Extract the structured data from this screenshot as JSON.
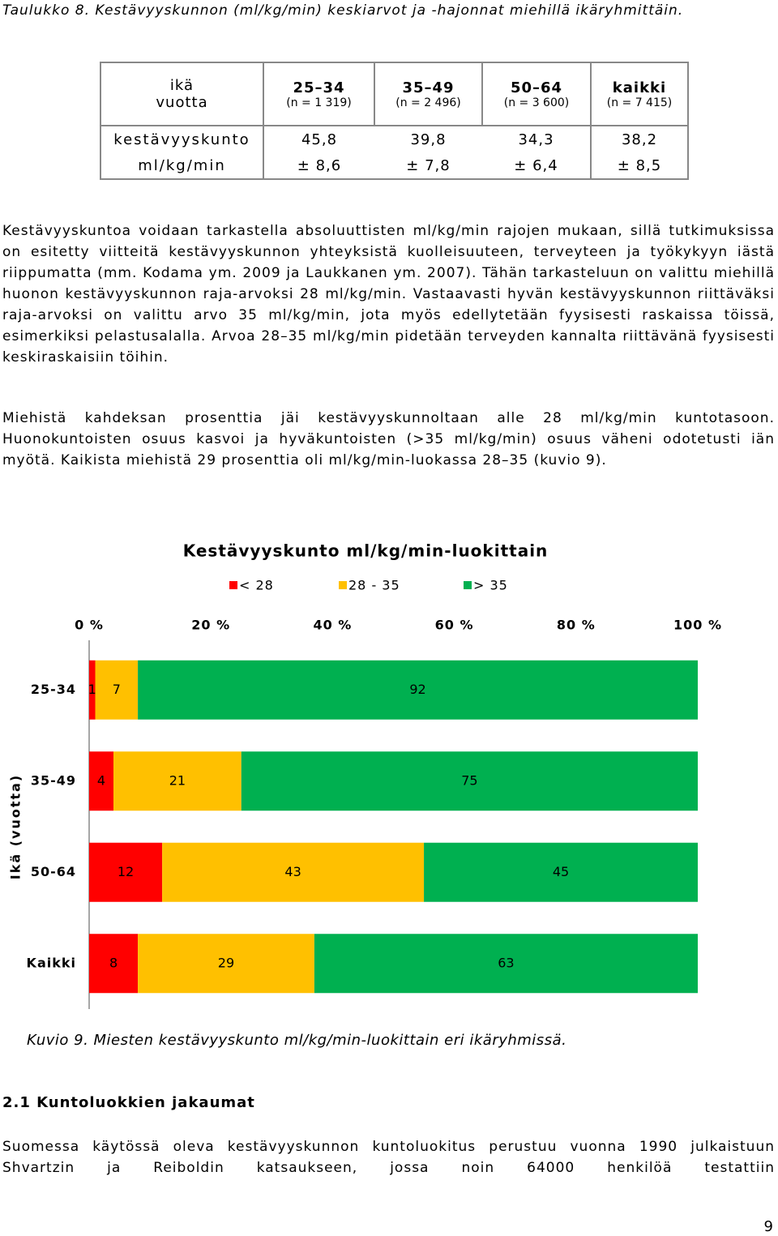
{
  "caption": "Taulukko 8. Kestävyyskunnon (ml/kg/min) keskiarvot ja -hajonnat miehillä ikäryhmittäin.",
  "table": {
    "header": [
      [
        "ikä",
        "vuotta"
      ],
      [
        "25–34",
        "(n = 1 319)"
      ],
      [
        "35–49",
        "(n = 2 496)"
      ],
      [
        "50–64",
        "(n = 3 600)"
      ],
      [
        "kaikki",
        "(n = 7 415)"
      ]
    ],
    "rows": [
      [
        "kestävyyskunto",
        "45,8",
        "39,8",
        "34,3",
        "38,2"
      ],
      [
        "ml/kg/min",
        "± 8,6",
        "± 7,8",
        "± 6,4",
        "± 8,5"
      ]
    ]
  },
  "paragraphs": [
    "Kestävyyskuntoa voidaan tarkastella absoluuttisten ml/kg/min rajojen mukaan, sillä tutkimuksissa on esitetty viitteitä kestävyyskunnon yhteyksistä kuolleisuuteen, terveyteen ja työkykyyn iästä riippumatta (mm. Kodama ym. 2009 ja Laukkanen ym. 2007). Tähän tarkasteluun on valittu miehillä huonon kestävyyskunnon raja-arvoksi 28 ml/kg/min. Vastaavasti hyvän kestävyyskunnon riittäväksi raja-arvoksi on valittu arvo 35 ml/kg/min, jota myös edellytetään fyysisesti raskaissa töissä, esimerkiksi pelastusalalla. Arvoa 28–35 ml/kg/min pidetään terveyden kannalta riittävänä fyysisesti keskiraskaisiin töihin.",
    "Miehistä kahdeksan prosenttia jäi kestävyyskunnoltaan alle 28 ml/kg/min kuntotasoon. Huonokuntoisten osuus kasvoi ja hyväkuntoisten (>35 ml/kg/min) osuus väheni odotetusti iän myötä. Kaikista miehistä 29 prosenttia oli ml/kg/min-luokassa 28–35 (kuvio 9)."
  ],
  "chart_data": {
    "type": "stacked-bar-horizontal",
    "title": "Kestävyyskunto ml/kg/min-luokittain",
    "y_label": "Ikä (vuotta)",
    "categories": [
      "25-34",
      "35-49",
      "50-64",
      "Kaikki"
    ],
    "series": [
      {
        "name": "< 28",
        "color": "#ff0000",
        "values": [
          1,
          4,
          12,
          8
        ]
      },
      {
        "name": "28 - 35",
        "color": "#ffc000",
        "values": [
          7,
          21,
          43,
          29
        ]
      },
      {
        "name": "> 35",
        "color": "#00b050",
        "values": [
          92,
          75,
          45,
          63
        ]
      }
    ],
    "xlim": [
      0,
      100
    ],
    "xticks": [
      {
        "value": 0,
        "label": "0 %"
      },
      {
        "value": 20,
        "label": "20 %"
      },
      {
        "value": 40,
        "label": "40 %"
      },
      {
        "value": 60,
        "label": "60 %"
      },
      {
        "value": 80,
        "label": "80 %"
      },
      {
        "value": 100,
        "label": "100 %"
      }
    ],
    "legend": "top"
  },
  "figure_caption": "Kuvio 9. Miesten kestävyyskunto ml/kg/min-luokittain eri ikäryhmissä.",
  "section_heading": "2.1 Kuntoluokkien jakaumat",
  "last_paragraph": "Suomessa käytössä oleva kestävyyskunnon kuntoluokitus perustuu vuonna 1990 julkaistuun Shvartzin ja Reiboldin katsaukseen, jossa noin 64000 henkilöä testattiin",
  "page_number": "9"
}
